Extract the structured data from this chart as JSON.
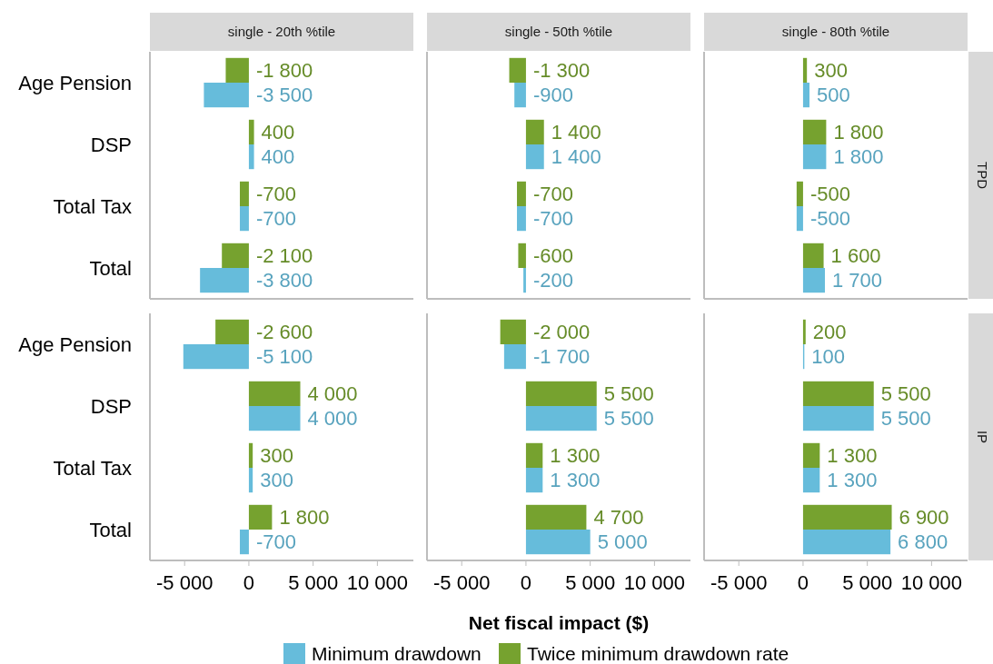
{
  "chart_data": [
    {
      "type": "bar",
      "orientation": "horizontal",
      "title": "single - 20th %tile",
      "categories": [
        "Age Pension",
        "DSP",
        "Total Tax",
        "Total"
      ],
      "xlim": [
        -7700,
        12800
      ],
      "tick_labels": "y",
      "grid": false,
      "legend": false,
      "series": [
        {
          "color": "#66bcdb",
          "values": [
            -3500,
            400,
            -700,
            -3800
          ],
          "value_labels": [
            "-3 500",
            "400",
            "-700",
            "-3 800"
          ]
        },
        {
          "color": "#76a22f",
          "values": [
            -1800,
            400,
            -700,
            -2100
          ],
          "value_labels": [
            "-1 800",
            "400",
            "-700",
            "-2 100"
          ]
        }
      ]
    },
    {
      "type": "bar",
      "orientation": "horizontal",
      "title": "single - 50th %tile",
      "categories": [
        null,
        null,
        null,
        null
      ],
      "xlim": [
        -7700,
        12800
      ],
      "tick_labels": false,
      "grid": false,
      "legend": false,
      "series": [
        {
          "color": "#66bcdb",
          "values": [
            -900,
            1400,
            -700,
            -200
          ],
          "value_labels": [
            "-900",
            "1 400",
            "-700",
            "-200"
          ]
        },
        {
          "color": "#76a22f",
          "values": [
            -1300,
            1400,
            -700,
            -600
          ],
          "value_labels": [
            "-1 300",
            "1 400",
            "-700",
            "-600"
          ]
        }
      ]
    },
    {
      "type": "bar",
      "orientation": "horizontal",
      "title": "single - 80th %tile",
      "y2label": "TPD",
      "categories": [
        null,
        null,
        null,
        null
      ],
      "xlim": [
        -7700,
        12800
      ],
      "tick_labels": false,
      "grid": false,
      "legend": false,
      "series": [
        {
          "color": "#66bcdb",
          "values": [
            500,
            1800,
            -500,
            1700
          ],
          "value_labels": [
            "500",
            "1 800",
            "-500",
            "1 700"
          ]
        },
        {
          "color": "#76a22f",
          "values": [
            300,
            1800,
            -500,
            1600
          ],
          "value_labels": [
            "300",
            "1 800",
            "-500",
            "1 600"
          ]
        }
      ]
    },
    {
      "type": "bar",
      "orientation": "horizontal",
      "categories": [
        "Age Pension",
        "DSP",
        "Total Tax",
        "Total"
      ],
      "xlim": [
        -7700,
        12800
      ],
      "xticks": [
        {
          "value": -5000,
          "label": "-5 000"
        },
        {
          "value": 0,
          "label": "0"
        },
        {
          "value": 5000,
          "label": "5 000"
        },
        {
          "value": 10000,
          "label": "10 000"
        }
      ],
      "grid": false,
      "legend": false,
      "series": [
        {
          "color": "#66bcdb",
          "values": [
            -5100,
            4000,
            300,
            -700
          ],
          "value_labels": [
            "-5 100",
            "4 000",
            "300",
            "-700"
          ]
        },
        {
          "color": "#76a22f",
          "values": [
            -2600,
            4000,
            300,
            1800
          ],
          "value_labels": [
            "-2 600",
            "4 000",
            "300",
            "1 800"
          ]
        }
      ]
    },
    {
      "type": "bar",
      "orientation": "horizontal",
      "xlabel": "Net fiscal impact ($)",
      "categories": [
        null,
        null,
        null,
        null
      ],
      "xlim": [
        -7700,
        12800
      ],
      "xticks": [
        {
          "value": -5000,
          "label": "-5 000"
        },
        {
          "value": 0,
          "label": "0"
        },
        {
          "value": 5000,
          "label": "5 000"
        },
        {
          "value": 10000,
          "label": "10 000"
        }
      ],
      "tick_labels": "x",
      "grid": false,
      "legend": "bottom",
      "series": [
        {
          "name": "Minimum drawdown",
          "color": "#66bcdb",
          "values": [
            -1700,
            5500,
            1300,
            5000
          ],
          "value_labels": [
            "-1 700",
            "5 500",
            "1 300",
            "5 000"
          ]
        },
        {
          "name": "Twice minimum drawdown rate",
          "color": "#76a22f",
          "values": [
            -2000,
            5500,
            1300,
            4700
          ],
          "value_labels": [
            "-2 000",
            "5 500",
            "1 300",
            "4 700"
          ]
        }
      ]
    },
    {
      "type": "bar",
      "orientation": "horizontal",
      "y2label": "IP",
      "categories": [
        null,
        null,
        null,
        null
      ],
      "xlim": [
        -7700,
        12800
      ],
      "xticks": [
        {
          "value": -5000,
          "label": "-5 000"
        },
        {
          "value": 0,
          "label": "0"
        },
        {
          "value": 5000,
          "label": "5 000"
        },
        {
          "value": 10000,
          "label": "10 000"
        }
      ],
      "tick_labels": "x",
      "grid": false,
      "legend": false,
      "series": [
        {
          "color": "#66bcdb",
          "values": [
            100,
            5500,
            1300,
            6800
          ],
          "value_labels": [
            "100",
            "5 500",
            "1 300",
            "6 800"
          ]
        },
        {
          "color": "#76a22f",
          "values": [
            200,
            5500,
            1300,
            6900
          ],
          "value_labels": [
            "200",
            "5 500",
            "1 300",
            "6 900"
          ]
        }
      ]
    }
  ]
}
